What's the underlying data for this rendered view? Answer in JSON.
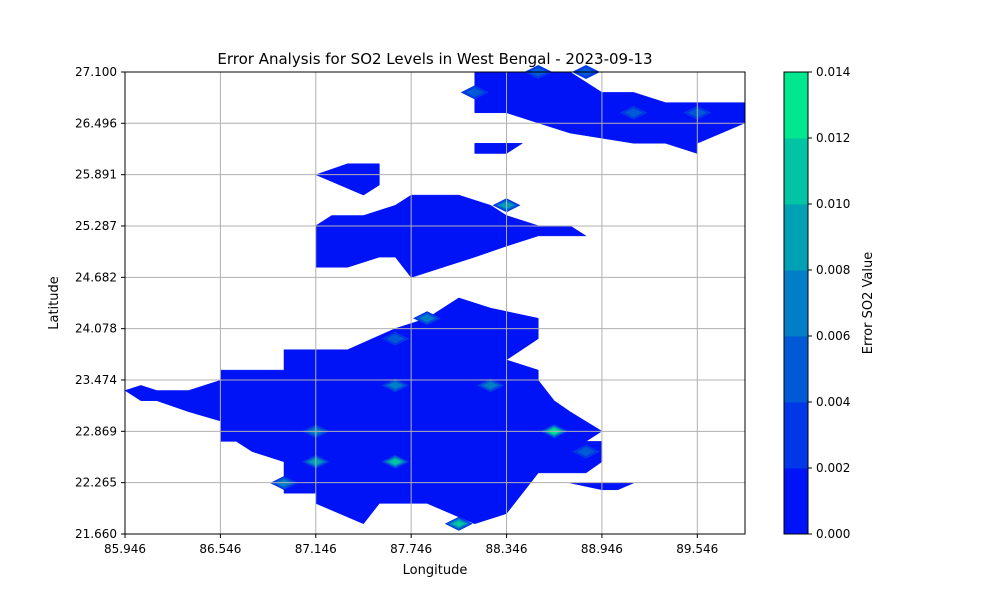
{
  "chart_data": {
    "type": "heatmap",
    "title": "Error Analysis for SO2 Levels in West Bengal - 2023-09-13",
    "xlabel": "Longitude",
    "ylabel": "Latitude",
    "xlim": [
      85.946,
      89.846
    ],
    "ylim": [
      21.66,
      27.1
    ],
    "x_ticks": [
      "85.946",
      "86.546",
      "87.146",
      "87.746",
      "88.346",
      "88.946",
      "89.546"
    ],
    "y_ticks": [
      "21.660",
      "22.265",
      "22.869",
      "23.474",
      "24.078",
      "24.682",
      "25.287",
      "25.891",
      "26.496",
      "27.100"
    ],
    "grid": true,
    "colorbar": {
      "label": "Error SO2 Value",
      "min": 0.0,
      "max": 0.014,
      "ticks": [
        "0.000",
        "0.002",
        "0.004",
        "0.006",
        "0.008",
        "0.010",
        "0.012",
        "0.014"
      ],
      "colors": [
        "#0013f7",
        "#0037e6",
        "#005ad6",
        "#007ec6",
        "#00a1b5",
        "#00c4a4",
        "#00e790"
      ]
    },
    "regions": [
      {
        "name": "southern-main-region",
        "value": 0.001,
        "points": [
          [
            85.946,
            23.35
          ],
          [
            86.046,
            23.41
          ],
          [
            86.146,
            23.35
          ],
          [
            86.346,
            23.35
          ],
          [
            86.546,
            23.47
          ],
          [
            86.546,
            23.59
          ],
          [
            86.946,
            23.59
          ],
          [
            86.946,
            23.83
          ],
          [
            87.346,
            23.83
          ],
          [
            87.646,
            24.08
          ],
          [
            87.846,
            24.2
          ],
          [
            88.046,
            24.44
          ],
          [
            88.246,
            24.32
          ],
          [
            88.546,
            24.2
          ],
          [
            88.546,
            23.96
          ],
          [
            88.346,
            23.71
          ],
          [
            88.546,
            23.59
          ],
          [
            88.546,
            23.47
          ],
          [
            88.646,
            23.23
          ],
          [
            88.746,
            23.1
          ],
          [
            88.946,
            22.87
          ],
          [
            88.846,
            22.75
          ],
          [
            88.946,
            22.75
          ],
          [
            88.946,
            22.51
          ],
          [
            88.846,
            22.38
          ],
          [
            88.546,
            22.38
          ],
          [
            88.346,
            21.9
          ],
          [
            88.146,
            21.78
          ],
          [
            87.846,
            22.02
          ],
          [
            87.546,
            22.02
          ],
          [
            87.446,
            21.78
          ],
          [
            87.146,
            22.02
          ],
          [
            87.146,
            22.14
          ],
          [
            86.946,
            22.14
          ],
          [
            86.946,
            22.51
          ],
          [
            86.746,
            22.63
          ],
          [
            86.646,
            22.75
          ],
          [
            86.546,
            22.75
          ],
          [
            86.546,
            22.99
          ],
          [
            86.346,
            23.1
          ],
          [
            86.146,
            23.23
          ],
          [
            86.046,
            23.23
          ],
          [
            85.946,
            23.35
          ]
        ]
      },
      {
        "name": "southeast-fragment",
        "value": 0.001,
        "points": [
          [
            88.746,
            22.26
          ],
          [
            89.146,
            22.26
          ],
          [
            89.046,
            22.18
          ],
          [
            88.946,
            22.18
          ],
          [
            88.746,
            22.26
          ]
        ]
      },
      {
        "name": "central-region",
        "value": 0.001,
        "points": [
          [
            87.146,
            25.29
          ],
          [
            87.246,
            25.41
          ],
          [
            87.446,
            25.41
          ],
          [
            87.646,
            25.53
          ],
          [
            87.746,
            25.65
          ],
          [
            88.046,
            25.65
          ],
          [
            88.246,
            25.53
          ],
          [
            88.346,
            25.41
          ],
          [
            88.546,
            25.29
          ],
          [
            88.746,
            25.29
          ],
          [
            88.846,
            25.17
          ],
          [
            88.546,
            25.17
          ],
          [
            88.346,
            25.05
          ],
          [
            88.146,
            24.92
          ],
          [
            87.946,
            24.8
          ],
          [
            87.746,
            24.68
          ],
          [
            87.646,
            24.92
          ],
          [
            87.546,
            24.92
          ],
          [
            87.346,
            24.8
          ],
          [
            87.146,
            24.8
          ],
          [
            87.146,
            25.29
          ]
        ]
      },
      {
        "name": "north-central-strip",
        "value": 0.001,
        "points": [
          [
            87.146,
            25.89
          ],
          [
            87.346,
            26.02
          ],
          [
            87.546,
            26.02
          ],
          [
            87.546,
            25.77
          ],
          [
            87.446,
            25.65
          ],
          [
            87.146,
            25.89
          ]
        ]
      },
      {
        "name": "small-northern-fragment",
        "value": 0.001,
        "points": [
          [
            88.146,
            26.26
          ],
          [
            88.446,
            26.26
          ],
          [
            88.346,
            26.14
          ],
          [
            88.146,
            26.14
          ],
          [
            88.146,
            26.26
          ]
        ]
      },
      {
        "name": "northern-region",
        "value": 0.001,
        "points": [
          [
            88.146,
            26.62
          ],
          [
            88.146,
            27.1
          ],
          [
            88.746,
            27.1
          ],
          [
            88.946,
            26.86
          ],
          [
            89.146,
            26.86
          ],
          [
            89.346,
            26.74
          ],
          [
            89.346,
            26.74
          ],
          [
            89.846,
            26.74
          ],
          [
            89.846,
            26.5
          ],
          [
            89.546,
            26.26
          ],
          [
            89.546,
            26.14
          ],
          [
            89.346,
            26.26
          ],
          [
            89.146,
            26.26
          ],
          [
            88.746,
            26.38
          ],
          [
            88.546,
            26.5
          ],
          [
            88.346,
            26.62
          ],
          [
            88.146,
            26.62
          ]
        ]
      }
    ],
    "hotspots": [
      {
        "lon": 88.346,
        "lat": 25.53,
        "value": 0.008
      },
      {
        "lon": 87.846,
        "lat": 24.2,
        "value": 0.006
      },
      {
        "lon": 87.646,
        "lat": 23.96,
        "value": 0.004
      },
      {
        "lon": 87.646,
        "lat": 23.41,
        "value": 0.006
      },
      {
        "lon": 88.246,
        "lat": 23.41,
        "value": 0.006
      },
      {
        "lon": 88.646,
        "lat": 22.87,
        "value": 0.012
      },
      {
        "lon": 87.146,
        "lat": 22.87,
        "value": 0.006
      },
      {
        "lon": 87.146,
        "lat": 22.51,
        "value": 0.008
      },
      {
        "lon": 86.946,
        "lat": 22.26,
        "value": 0.006
      },
      {
        "lon": 87.646,
        "lat": 22.51,
        "value": 0.01
      },
      {
        "lon": 88.846,
        "lat": 22.63,
        "value": 0.004
      },
      {
        "lon": 88.046,
        "lat": 21.78,
        "value": 0.01
      },
      {
        "lon": 88.846,
        "lat": 27.1,
        "value": 0.004
      },
      {
        "lon": 88.546,
        "lat": 27.1,
        "value": 0.004
      },
      {
        "lon": 88.146,
        "lat": 26.86,
        "value": 0.004
      },
      {
        "lon": 89.146,
        "lat": 26.62,
        "value": 0.004
      },
      {
        "lon": 89.546,
        "lat": 26.62,
        "value": 0.004
      }
    ]
  }
}
